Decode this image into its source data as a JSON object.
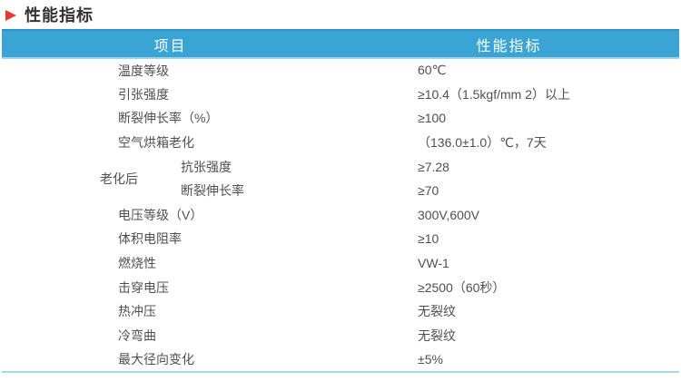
{
  "page": {
    "title": "性能指标"
  },
  "icons": {
    "title_arrow": "red-right-arrow"
  },
  "colors": {
    "title_arrow": "#e23b2e",
    "title_text": "#333333",
    "header_bg": "#3aa4d4",
    "header_top_edge": "#2d94c3",
    "header_under_edge": "#9ed2ec",
    "header_text": "#ffffff",
    "row_bg": "#ffffff",
    "row_alt_bg": "#c9e7f8",
    "body_text": "#4f4f4f",
    "bottom_line": "#a7d7f0"
  },
  "table": {
    "headers": {
      "item": "项目",
      "value": "性能指标"
    },
    "rows": [
      {
        "label": "温度等级",
        "value": "60℃"
      },
      {
        "label": "引张强度",
        "value": "≥10.4（1.5kgf/mm 2）以上"
      },
      {
        "label": "断裂伸长率（%）",
        "value": "≥100"
      },
      {
        "label": "空气烘箱老化",
        "value": "（136.0±1.0）℃，7天"
      },
      {
        "group": "老化后",
        "sub": [
          {
            "label": "抗张强度",
            "value": "≥7.28"
          },
          {
            "label": "断裂伸长率",
            "value": "≥70"
          }
        ]
      },
      {
        "label": "电压等级（V）",
        "value": "300V,600V"
      },
      {
        "label": "体积电阻率",
        "value": "≥10"
      },
      {
        "label": "燃烧性",
        "value": "VW-1"
      },
      {
        "label": "击穿电压",
        "value": "≥2500（60秒）"
      },
      {
        "label": "热冲压",
        "value": "无裂纹"
      },
      {
        "label": "冷弯曲",
        "value": "无裂纹"
      },
      {
        "label": "最大径向变化",
        "value": "±5%"
      }
    ]
  }
}
